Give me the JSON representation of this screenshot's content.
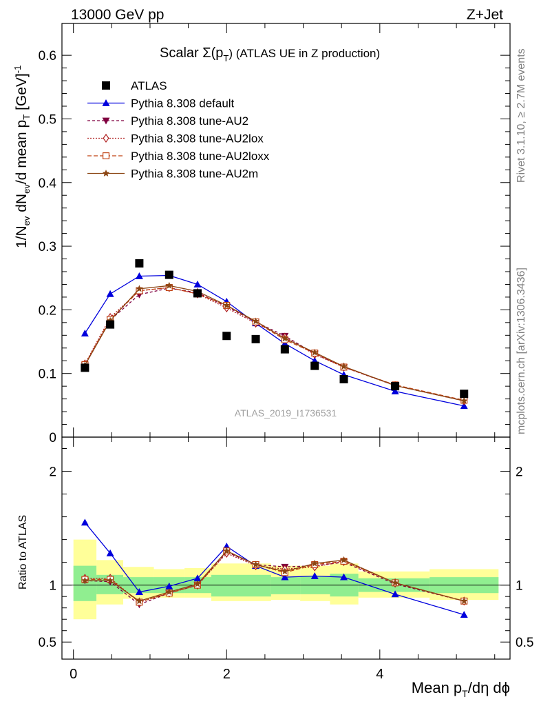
{
  "header": {
    "left": "13000 GeV pp",
    "right": "Z+Jet",
    "title_prefix": "Scalar Σ(p",
    "title_sub": "T",
    "title_suffix": ") (ATLAS UE in Z production)"
  },
  "side_labels": {
    "rivet": "Rivet 3.1.10, ≥ 2.7M events",
    "mcplots": "mcplots.cern.ch [arXiv:1306.3436]"
  },
  "watermark": "ATLAS_2019_I1736531",
  "axes": {
    "xlabel": "Mean p",
    "xlabel_sub": "T",
    "xlabel_suffix": "/dη dϕ",
    "ylabel_main": "1/N",
    "ylabel_ev": "ev",
    "ylabel_mid": " dN",
    "ylabel_ev2": "ev",
    "ylabel_tail": "/d mean p",
    "ylabel_T": "T",
    "ylabel_unit": " [GeV]",
    "ylabel_sup": "-1",
    "ratio_ylabel": "Ratio to ATLAS"
  },
  "chart_data": {
    "type": "line",
    "title": "Scalar Σ(pT) (ATLAS UE in Z production)",
    "xlabel": "Mean pT/dη dϕ",
    "ylabel": "1/Nev dNev/d mean pT [GeV]^-1",
    "xlim": [
      -0.15,
      5.7
    ],
    "ylim": [
      0,
      0.65
    ],
    "ratio_ylim": [
      0.35,
      2.3
    ],
    "main_yticks": [
      0,
      0.1,
      0.2,
      0.3,
      0.4,
      0.5,
      0.6
    ],
    "main_ytick_labels": [
      "0",
      "0.1",
      "0.2",
      "0.3",
      "0.4",
      "0.5",
      "0.6"
    ],
    "ratio_yticks": [
      0.5,
      1,
      2
    ],
    "ratio_ytick_labels": [
      "0.5",
      "1",
      "2"
    ],
    "xticks": [
      0,
      2,
      4
    ],
    "xtick_labels": [
      "0",
      "2",
      "4"
    ],
    "legend_position": "top-left",
    "x": [
      0.15,
      0.48,
      0.86,
      1.25,
      1.62,
      2.0,
      2.38,
      2.76,
      3.15,
      3.53,
      4.2,
      5.1
    ],
    "bin_edges": [
      0.0,
      0.3,
      0.65,
      1.05,
      1.45,
      1.8,
      2.2,
      2.58,
      2.96,
      3.35,
      3.72,
      4.65,
      5.55
    ],
    "data": {
      "name": "ATLAS",
      "values": [
        0.109,
        0.177,
        0.273,
        0.255,
        0.226,
        0.159,
        0.154,
        0.138,
        0.112,
        0.091,
        0.08,
        0.068
      ]
    },
    "series": [
      {
        "name": "Pythia 8.308 default",
        "color": "#0000dd",
        "dash": "",
        "marker": "triangle-up",
        "values": [
          0.163,
          0.225,
          0.253,
          0.254,
          0.24,
          0.213,
          0.179,
          0.147,
          0.12,
          0.098,
          0.072,
          0.049
        ]
      },
      {
        "name": "Pythia 8.308 tune-AU2",
        "color": "#800040",
        "dash": "4,3",
        "marker": "triangle-down",
        "values": [
          0.113,
          0.184,
          0.224,
          0.234,
          0.227,
          0.205,
          0.181,
          0.159,
          0.131,
          0.11,
          0.081,
          0.057
        ]
      },
      {
        "name": "Pythia 8.308 tune-AU2lox",
        "color": "#b02020",
        "dash": "2,2",
        "marker": "diamond-open",
        "values": [
          0.115,
          0.188,
          0.23,
          0.235,
          0.225,
          0.203,
          0.179,
          0.157,
          0.13,
          0.11,
          0.081,
          0.057
        ]
      },
      {
        "name": "Pythia 8.308 tune-AU2loxx",
        "color": "#c04010",
        "dash": "6,3",
        "marker": "square-open",
        "values": [
          0.114,
          0.185,
          0.23,
          0.235,
          0.225,
          0.207,
          0.181,
          0.153,
          0.132,
          0.11,
          0.082,
          0.058
        ]
      },
      {
        "name": "Pythia 8.308 tune-AU2m",
        "color": "#8b4513",
        "dash": "",
        "marker": "star",
        "values": [
          0.113,
          0.183,
          0.233,
          0.238,
          0.229,
          0.207,
          0.182,
          0.155,
          0.133,
          0.111,
          0.081,
          0.057
        ]
      }
    ],
    "ratio": {
      "band_inner": [
        [
          0.86,
          1.17
        ],
        [
          0.92,
          1.09
        ],
        [
          0.93,
          1.07
        ],
        [
          0.93,
          1.07
        ],
        [
          0.93,
          1.07
        ],
        [
          0.9,
          1.09
        ],
        [
          0.9,
          1.09
        ],
        [
          0.92,
          1.07
        ],
        [
          0.92,
          1.08
        ],
        [
          0.9,
          1.1
        ],
        [
          0.94,
          1.06
        ],
        [
          0.93,
          1.07
        ]
      ],
      "band_outer": [
        [
          0.7,
          1.4
        ],
        [
          0.83,
          1.22
        ],
        [
          0.88,
          1.16
        ],
        [
          0.89,
          1.14
        ],
        [
          0.89,
          1.15
        ],
        [
          0.86,
          1.19
        ],
        [
          0.86,
          1.19
        ],
        [
          0.87,
          1.17
        ],
        [
          0.86,
          1.17
        ],
        [
          0.83,
          1.19
        ],
        [
          0.89,
          1.12
        ],
        [
          0.87,
          1.14
        ]
      ],
      "series": [
        [
          1.55,
          1.28,
          0.94,
          0.99,
          1.06,
          1.34,
          1.17,
          1.07,
          1.08,
          1.07,
          0.92,
          0.74
        ],
        [
          1.04,
          1.03,
          0.83,
          0.93,
          1.0,
          1.29,
          1.18,
          1.16,
          1.17,
          1.2,
          1.01,
          0.86
        ],
        [
          1.06,
          1.06,
          0.85,
          0.93,
          1.0,
          1.28,
          1.17,
          1.14,
          1.16,
          1.21,
          1.02,
          0.86
        ],
        [
          1.05,
          1.05,
          0.85,
          0.93,
          1.0,
          1.3,
          1.18,
          1.11,
          1.18,
          1.21,
          1.02,
          0.86
        ],
        [
          1.04,
          1.04,
          0.86,
          0.94,
          1.01,
          1.3,
          1.18,
          1.12,
          1.19,
          1.22,
          1.02,
          0.86
        ]
      ]
    }
  }
}
